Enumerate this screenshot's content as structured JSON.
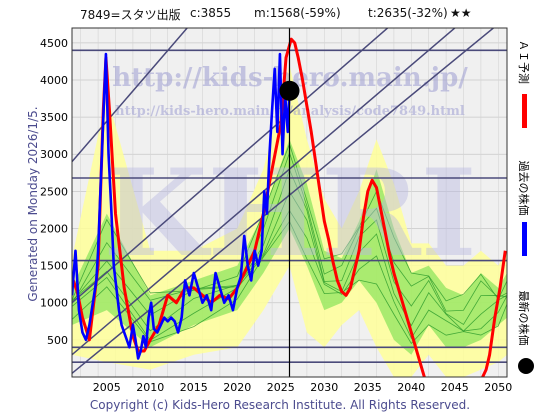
{
  "header": {
    "code_name": "7849=スタツ出版",
    "current": "c:3855",
    "max_label": "m:1568(-59%)",
    "target_label": "t:2635(-32%)",
    "rating": "★★"
  },
  "side_label": "Generated on Monday 2026/1/5.",
  "footer": "Copyright (c) Kids-Hero Research Institute. All Rights Reserved.",
  "watermarks": {
    "url_large": "http://kids-hero.main.jp/",
    "url_small": "http://kids-hero.main.jp/analysis/code7849.html",
    "logo": "KHRI"
  },
  "legend": [
    {
      "label": "ＡＩ予測",
      "color": "#ff0000"
    },
    {
      "label": "過去の株価",
      "color": "#0000ff"
    },
    {
      "label": "最新の株価",
      "color": "#000000"
    }
  ],
  "colors": {
    "ai_forecast": "#ff0000",
    "past_price": "#0000ff",
    "latest_marker": "#000000",
    "range_fill": "#ffff99",
    "band_fill": "#66dd44",
    "scenario_line": "#2a9a2a",
    "level_line": "#4a4a7a",
    "plot_bg": "#f0f0f0"
  },
  "chart_data": {
    "type": "line",
    "xlim": [
      2001,
      2051
    ],
    "ylim": [
      0,
      4700
    ],
    "x_ticks": [
      2005,
      2010,
      2015,
      2020,
      2025,
      2030,
      2035,
      2040,
      2045,
      2050
    ],
    "y_ticks": [
      500,
      1000,
      1500,
      2000,
      2500,
      3000,
      3500,
      4000,
      4500
    ],
    "grid": true,
    "latest_marker": {
      "x": 2026.0,
      "y": 3855
    },
    "now_x": 2026.0,
    "horizontal_levels": [
      4400,
      2680,
      1568,
      400,
      200
    ],
    "diagonal_levels": [
      {
        "x": [
          2001,
          2051
        ],
        "y": [
          2900,
          9700
        ]
      },
      {
        "x": [
          2001,
          2051
        ],
        "y": [
          1000,
          6100
        ]
      },
      {
        "x": [
          2001,
          2051
        ],
        "y": [
          300,
          5300
        ]
      },
      {
        "x": [
          2001,
          2051
        ],
        "y": [
          50,
          4850
        ]
      }
    ],
    "series": [
      {
        "name": "過去の株価",
        "x": [
          2001.0,
          2001.4,
          2001.8,
          2002.2,
          2002.6,
          2003.0,
          2003.4,
          2003.8,
          2004.0,
          2004.3,
          2004.6,
          2004.9,
          2005.2,
          2005.5,
          2005.8,
          2006.1,
          2006.4,
          2006.7,
          2007.0,
          2007.3,
          2007.6,
          2008.0,
          2008.3,
          2008.6,
          2008.9,
          2009.2,
          2009.5,
          2009.8,
          2010.1,
          2010.4,
          2010.8,
          2011.2,
          2011.6,
          2012.0,
          2012.4,
          2012.8,
          2013.2,
          2013.6,
          2014.0,
          2014.5,
          2015.0,
          2015.5,
          2016.0,
          2016.5,
          2017.0,
          2017.5,
          2018.0,
          2018.5,
          2019.0,
          2019.5,
          2020.0,
          2020.4,
          2020.8,
          2021.2,
          2021.6,
          2022.0,
          2022.4,
          2022.8,
          2023.1,
          2023.4,
          2023.7,
          2024.0,
          2024.3,
          2024.6,
          2024.9,
          2025.2,
          2025.5,
          2025.8,
          2026.0
        ],
        "y": [
          1100,
          1700,
          900,
          600,
          500,
          700,
          1000,
          1300,
          1700,
          2600,
          3500,
          4350,
          3000,
          2300,
          1500,
          1200,
          900,
          700,
          600,
          500,
          400,
          700,
          500,
          250,
          350,
          550,
          400,
          800,
          1000,
          650,
          600,
          700,
          800,
          750,
          800,
          750,
          600,
          800,
          1300,
          1100,
          1400,
          1200,
          1000,
          1100,
          900,
          1400,
          1200,
          1000,
          1100,
          900,
          1200,
          1350,
          1900,
          1500,
          1300,
          1700,
          1500,
          1700,
          2500,
          2200,
          3000,
          3600,
          4150,
          3300,
          4350,
          3000,
          3800,
          3300,
          3855
        ]
      },
      {
        "name": "ＡＩ予測",
        "x": [
          2001.0,
          2001.6,
          2002.2,
          2003.0,
          2004.0,
          2004.6,
          2004.9,
          2005.3,
          2006.0,
          2007.0,
          2008.0,
          2008.6,
          2009.3,
          2010.0,
          2011.0,
          2012.0,
          2013.0,
          2014.0,
          2015.0,
          2016.0,
          2017.0,
          2018.0,
          2019.0,
          2020.0,
          2021.0,
          2022.0,
          2023.0,
          2024.0,
          2025.0,
          2025.6,
          2026.2,
          2026.6,
          2027.0,
          2027.5,
          2028.0,
          2028.5,
          2029.0,
          2029.5,
          2030.0,
          2030.5,
          2031.0,
          2031.5,
          2032.0,
          2032.5,
          2033.0,
          2033.5,
          2034.0,
          2034.5,
          2035.0,
          2035.5,
          2036.0,
          2036.5,
          2037.0,
          2037.5,
          2038.0,
          2038.5,
          2039.0,
          2039.5,
          2040.0,
          2040.5,
          2041.0,
          2041.5,
          2042.0,
          2042.5,
          2043.0,
          2044.0,
          2045.0,
          2046.0,
          2047.0,
          2048.0,
          2048.6,
          2049.0,
          2049.6,
          2050.2,
          2050.8
        ],
        "y": [
          1350,
          1150,
          800,
          500,
          1500,
          3600,
          4300,
          3600,
          2200,
          1200,
          550,
          350,
          350,
          500,
          700,
          1100,
          1000,
          1200,
          1200,
          1100,
          1000,
          1100,
          1050,
          1200,
          1450,
          1700,
          2200,
          2800,
          3400,
          4300,
          4550,
          4500,
          4300,
          4000,
          3650,
          3300,
          2900,
          2500,
          2100,
          1850,
          1550,
          1300,
          1150,
          1100,
          1200,
          1450,
          1700,
          2150,
          2500,
          2650,
          2550,
          2250,
          1950,
          1650,
          1400,
          1200,
          1000,
          800,
          600,
          400,
          200,
          0,
          -100,
          -150,
          -200,
          -200,
          -150,
          -100,
          -100,
          -50,
          100,
          300,
          800,
          1200,
          1700
        ]
      }
    ],
    "bands": {
      "x": [
        2001,
        2005,
        2010,
        2015,
        2020,
        2023,
        2026,
        2028,
        2030,
        2032,
        2034,
        2036,
        2038,
        2040,
        2042,
        2044,
        2046,
        2048,
        2050,
        2051
      ],
      "yellow_low": [
        300,
        200,
        100,
        300,
        400,
        900,
        1500,
        600,
        400,
        700,
        900,
        400,
        0,
        0,
        300,
        0,
        0,
        100,
        200,
        300
      ],
      "yellow_high": [
        1600,
        3800,
        1700,
        1700,
        2000,
        2800,
        4200,
        3200,
        2400,
        2000,
        2500,
        3200,
        2600,
        1800,
        1800,
        1500,
        1500,
        1700,
        1500,
        1700
      ],
      "green_low": [
        700,
        900,
        400,
        700,
        900,
        1400,
        2000,
        1500,
        900,
        1000,
        1300,
        1000,
        500,
        300,
        700,
        400,
        400,
        500,
        700,
        800
      ],
      "green_high": [
        1200,
        2200,
        1100,
        1300,
        1500,
        2200,
        3200,
        2600,
        1700,
        1600,
        2100,
        2800,
        2000,
        1400,
        1500,
        1200,
        1100,
        1400,
        1200,
        1400
      ]
    }
  }
}
